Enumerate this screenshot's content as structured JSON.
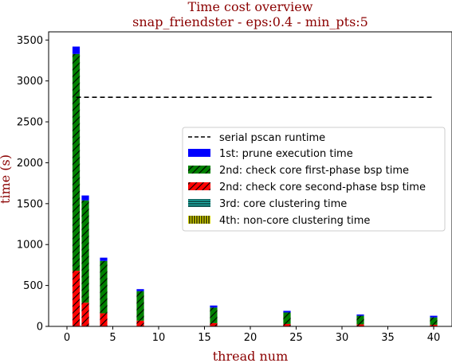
{
  "chart_data": {
    "type": "bar",
    "title": "Time cost overview",
    "subtitle": "snap_friendster - eps:0.4 - min_pts:5",
    "xlabel": "thread num",
    "ylabel": "time (s)",
    "xlim": [
      -2,
      42
    ],
    "ylim": [
      0,
      3600
    ],
    "xticks": [
      0,
      5,
      10,
      15,
      20,
      25,
      30,
      35,
      40
    ],
    "yticks": [
      0,
      500,
      1000,
      1500,
      2000,
      2500,
      3000,
      3500
    ],
    "x": [
      1,
      2,
      4,
      8,
      16,
      24,
      32,
      40
    ],
    "series": [
      {
        "name": "4th: non-core clustering time",
        "color": "#d4d400",
        "hatch": "vertical",
        "values": [
          0,
          0,
          0,
          0,
          0,
          0,
          0,
          0
        ]
      },
      {
        "name": "3rd: core clustering time",
        "color": "#20b2aa",
        "hatch": "horizontal",
        "values": [
          0,
          0,
          0,
          0,
          0,
          0,
          0,
          0
        ]
      },
      {
        "name": "2nd: check core second-phase bsp time",
        "color": "#ff0000",
        "hatch": "diagonal",
        "values": [
          680,
          290,
          160,
          70,
          40,
          30,
          25,
          20
        ]
      },
      {
        "name": "2nd: check core first-phase bsp time",
        "color": "#008000",
        "hatch": "diagonal",
        "values": [
          2650,
          1250,
          640,
          360,
          190,
          140,
          105,
          90
        ]
      },
      {
        "name": "1st: prune execution time",
        "color": "#0000ff",
        "hatch": "none",
        "values": [
          90,
          60,
          40,
          25,
          25,
          20,
          15,
          20
        ]
      }
    ],
    "reference_line": {
      "name": "serial pscan runtime",
      "value": 2800,
      "x_range": [
        1,
        40
      ],
      "style": "dashed",
      "color": "#000000"
    },
    "legend": {
      "position": "right",
      "entries": [
        "serial pscan runtime",
        "1st: prune execution time",
        "2nd: check core first-phase bsp time",
        "2nd: check core second-phase bsp time",
        "3rd: core clustering time",
        "4th: non-core clustering time"
      ]
    }
  }
}
